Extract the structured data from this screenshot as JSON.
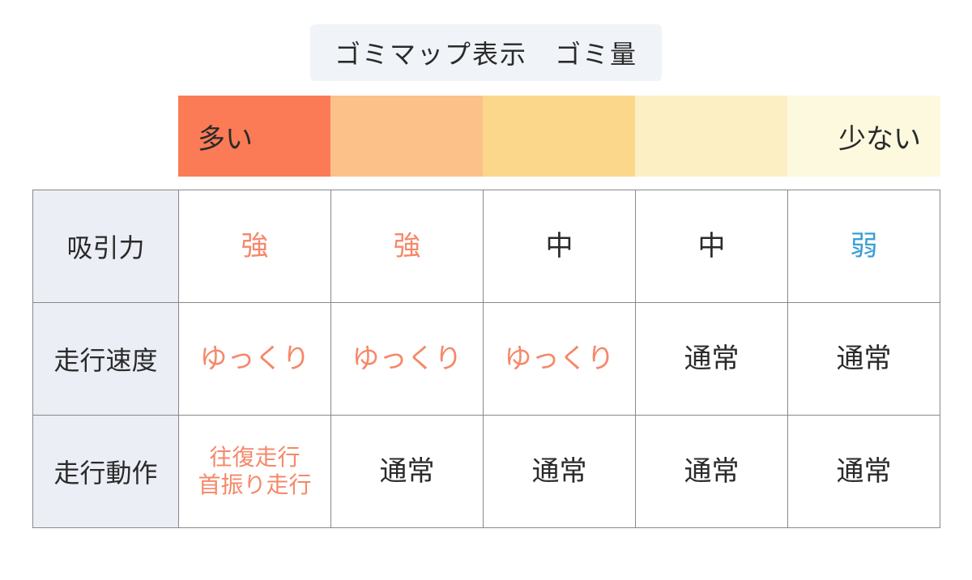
{
  "title": "ゴミマップ表示　ゴミ量",
  "scale": {
    "colors": [
      "#fa7b56",
      "#fcc189",
      "#fad78a",
      "#fdefc4",
      "#fcf9df"
    ],
    "left_label": "多い",
    "right_label": "少ない"
  },
  "text_colors": {
    "default": "#2a2a2a",
    "orange": "#f5886a",
    "blue": "#3a9fd6"
  },
  "rows": [
    {
      "header": "吸引力",
      "cells": [
        {
          "text": "強",
          "color": "orange"
        },
        {
          "text": "強",
          "color": "orange"
        },
        {
          "text": "中",
          "color": "default"
        },
        {
          "text": "中",
          "color": "default"
        },
        {
          "text": "弱",
          "color": "blue"
        }
      ]
    },
    {
      "header": "走行速度",
      "cells": [
        {
          "text": "ゆっくり",
          "color": "orange"
        },
        {
          "text": "ゆっくり",
          "color": "orange"
        },
        {
          "text": "ゆっくり",
          "color": "orange"
        },
        {
          "text": "通常",
          "color": "default"
        },
        {
          "text": "通常",
          "color": "default"
        }
      ]
    },
    {
      "header": "走行動作",
      "cells": [
        {
          "text": "往復走行\n首振り走行",
          "color": "orange",
          "small": true
        },
        {
          "text": "通常",
          "color": "default"
        },
        {
          "text": "通常",
          "color": "default"
        },
        {
          "text": "通常",
          "color": "default"
        },
        {
          "text": "通常",
          "color": "default"
        }
      ]
    }
  ]
}
